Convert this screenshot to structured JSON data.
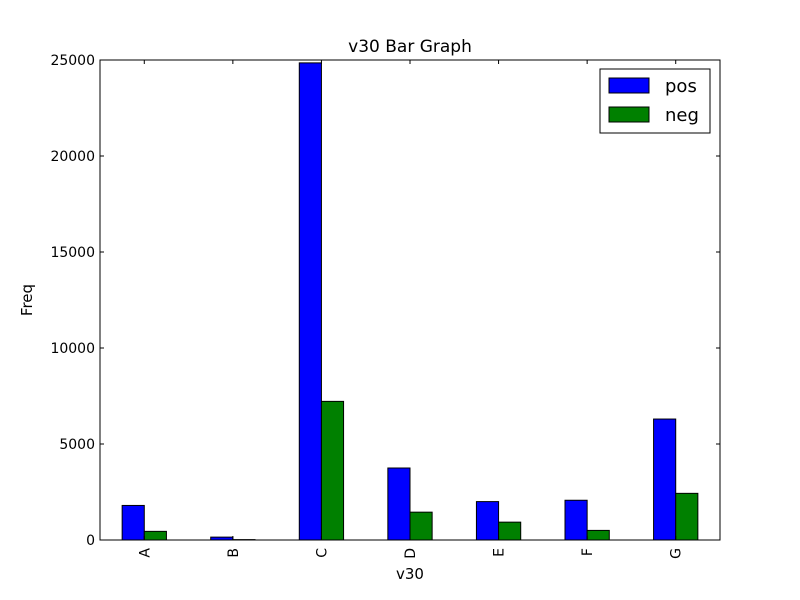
{
  "chart_data": {
    "type": "bar",
    "title": "v30 Bar Graph",
    "xlabel": "v30",
    "ylabel": "Freq",
    "categories": [
      "A",
      "B",
      "C",
      "D",
      "E",
      "F",
      "G"
    ],
    "series": [
      {
        "name": "pos",
        "color": "#0000ff",
        "values": [
          1800,
          150,
          24850,
          3750,
          2000,
          2070,
          6300
        ]
      },
      {
        "name": "neg",
        "color": "#008000",
        "values": [
          450,
          20,
          7220,
          1450,
          930,
          500,
          2430
        ]
      }
    ],
    "ylim": [
      0,
      25000
    ],
    "yticks": [
      "0",
      "5000",
      "10000",
      "15000",
      "20000",
      "25000"
    ],
    "ytick_values": [
      0,
      5000,
      10000,
      15000,
      20000,
      25000
    ],
    "grid": false,
    "legend_position": "top-right"
  }
}
